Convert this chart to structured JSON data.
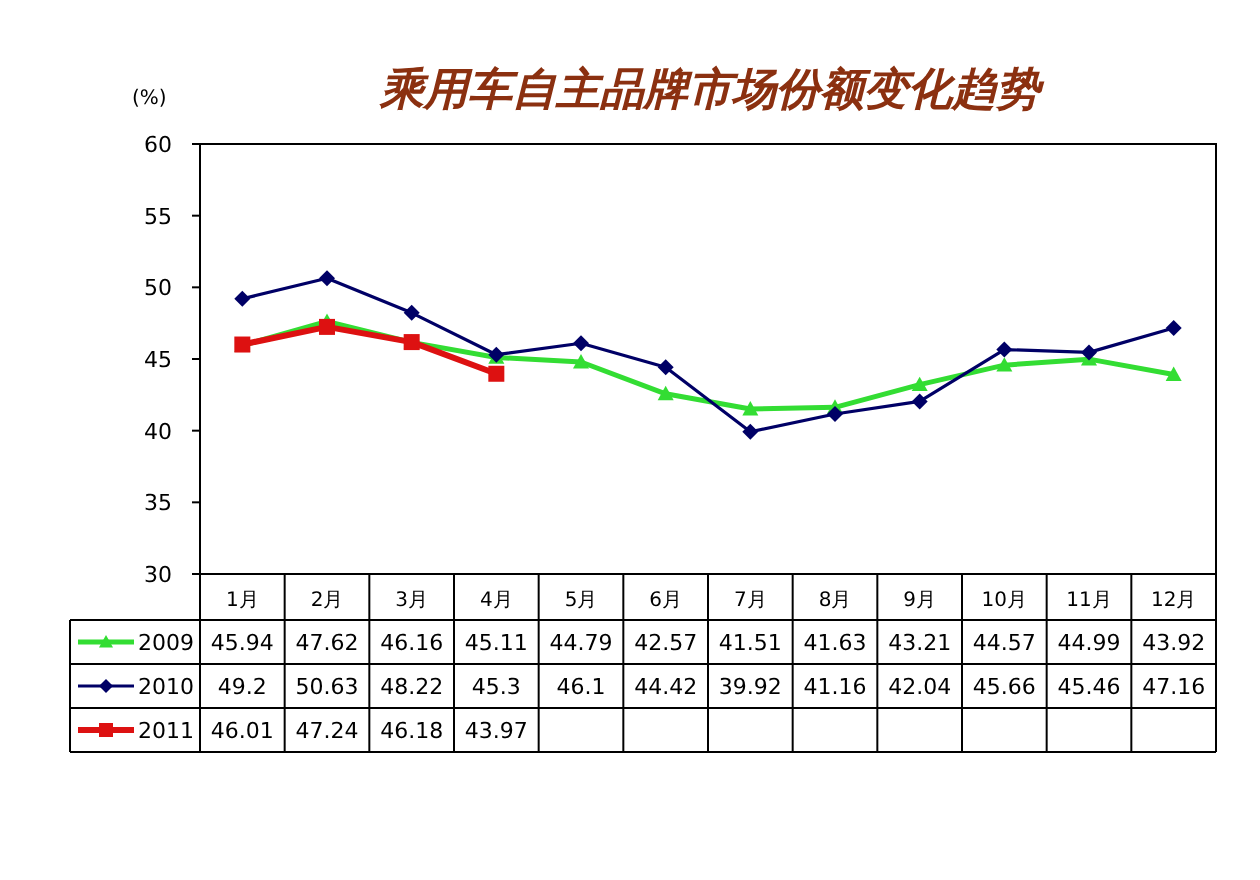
{
  "chart_data": {
    "type": "line",
    "title": "乘用车自主品牌市场份额变化趋势",
    "ylabel": "(%)",
    "categories": [
      "1月",
      "2月",
      "3月",
      "4月",
      "5月",
      "6月",
      "7月",
      "8月",
      "9月",
      "10月",
      "11月",
      "12月"
    ],
    "series": [
      {
        "name": "2009",
        "color": "#33dd33",
        "marker": "triangle",
        "values": [
          45.94,
          47.62,
          46.16,
          45.11,
          44.79,
          42.57,
          41.51,
          41.63,
          43.21,
          44.57,
          44.99,
          43.92
        ]
      },
      {
        "name": "2010",
        "color": "#000066",
        "marker": "diamond",
        "values": [
          49.2,
          50.63,
          48.22,
          45.3,
          46.1,
          44.42,
          39.92,
          41.16,
          42.04,
          45.66,
          45.46,
          47.16
        ]
      },
      {
        "name": "2011",
        "color": "#dd1111",
        "marker": "square",
        "values": [
          46.01,
          47.24,
          46.18,
          43.97,
          null,
          null,
          null,
          null,
          null,
          null,
          null,
          null
        ]
      }
    ],
    "ylim": [
      30,
      60
    ],
    "yticks": [
      30,
      35,
      40,
      45,
      50,
      55,
      60
    ],
    "grid": false,
    "legend": "bottom left",
    "data_labels": true
  }
}
